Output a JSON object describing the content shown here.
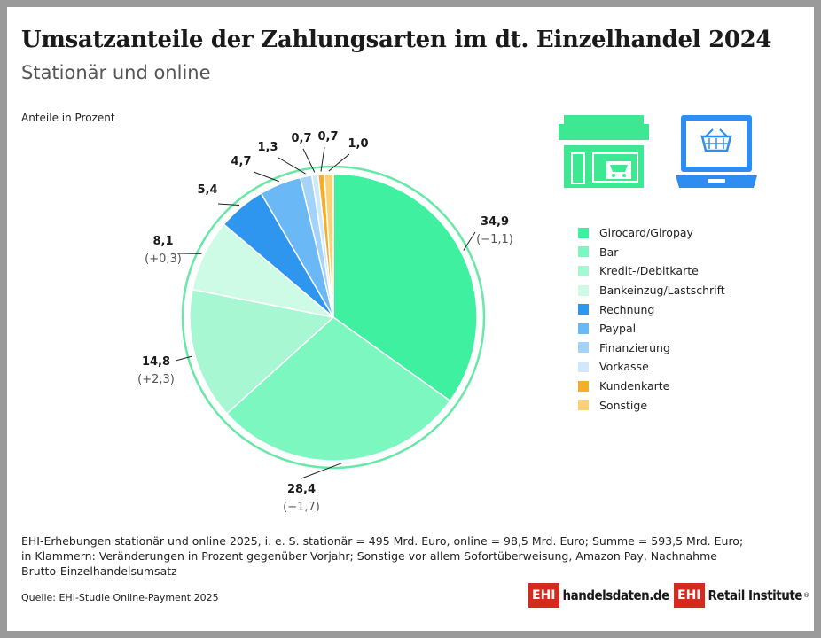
{
  "title": "Umsatzanteile der Zahlungsarten im dt. Einzelhandel 2024",
  "subtitle": "Stationär und online",
  "unit_label": "Anteile in Prozent",
  "chart_data": {
    "type": "pie",
    "unit": "Anteile in Prozent",
    "categories": [
      "Girocard/Giropay",
      "Bar",
      "Kredit-/Debitkarte",
      "Bankeinzug/Lastschrift",
      "Rechnung",
      "Paypal",
      "Finanzierung",
      "Vorkasse",
      "Kundenkarte",
      "Sonstige"
    ],
    "values": [
      34.9,
      28.4,
      14.8,
      8.1,
      5.4,
      4.7,
      1.3,
      0.7,
      0.7,
      1.0
    ],
    "value_labels": [
      "34,9",
      "28,4",
      "14,8",
      "8,1",
      "5,4",
      "4,7",
      "1,3",
      "0,7",
      "0,7",
      "1,0"
    ],
    "change_labels": [
      "(−1,1)",
      "(−1,7)",
      "(+2,3)",
      "(+0,3)",
      "",
      "",
      "",
      "",
      "",
      ""
    ],
    "colors": [
      "#3ef09f",
      "#7cf7bf",
      "#a6f7d2",
      "#cefbe5",
      "#2f96f0",
      "#6ab8f6",
      "#a3d3f8",
      "#cfe8fb",
      "#f5ae2a",
      "#fbd078"
    ],
    "legend_position": "right",
    "ring_color": "#66e8a6"
  },
  "icons": {
    "store": "storefront-icon",
    "laptop": "laptop-shopping-basket-icon",
    "store_color": "#3ee892",
    "laptop_color": "#2d8df0"
  },
  "notes": [
    "EHI-Erhebungen stationär und online 2025, i. e. S. stationär = 495 Mrd. Euro, online = 98,5 Mrd. Euro; Summe = 593,5 Mrd. Euro;",
    "in Klammern: Veränderungen in Prozent gegenüber Vorjahr; Sonstige vor allem Sofortüberweisung, Amazon Pay, Nachnahme",
    "Brutto-Einzelhandelsumsatz"
  ],
  "source": "Quelle: EHI-Studie Online-Payment 2025",
  "logos": {
    "ehi": "EHI",
    "handelsdaten": "handelsdaten.de",
    "retail": "Retail Institute",
    "registered": "®"
  }
}
